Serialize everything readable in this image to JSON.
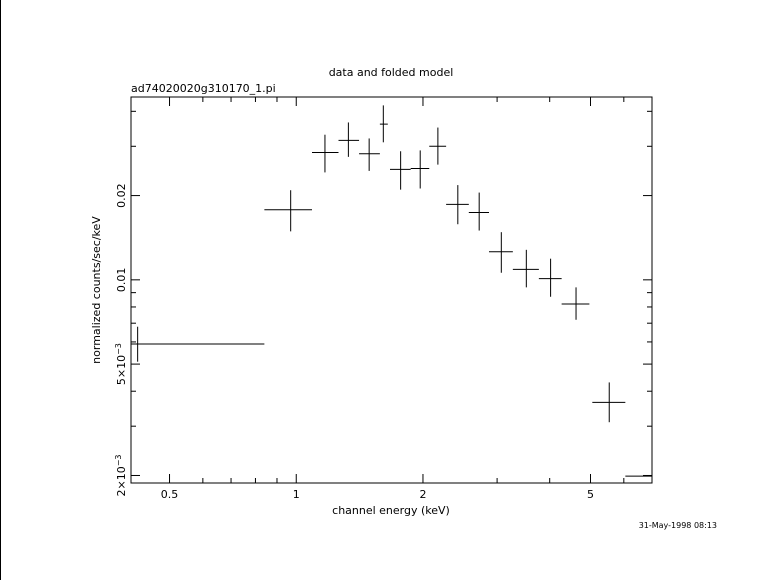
{
  "colors": {
    "background": "#ffffff",
    "ink": "#000000"
  },
  "chart_data": {
    "type": "scatter",
    "title": "data and folded model",
    "subtitle": "ad74020020g310170_1.pi",
    "xlabel": "channel energy (keV)",
    "ylabel": "normalized counts/sec/keV",
    "timestamp": "31-May-1998 08:13",
    "x_scale": "log",
    "y_scale": "log",
    "xlim": [
      0.405,
      7.0
    ],
    "ylim": [
      0.00188,
      0.045
    ],
    "grid": false,
    "x_ticks": [
      {
        "value": 0.5,
        "label": "0.5"
      },
      {
        "value": 1,
        "label": "1"
      },
      {
        "value": 2,
        "label": "2"
      },
      {
        "value": 5,
        "label": "5"
      }
    ],
    "y_ticks": [
      {
        "value": 0.002,
        "label": "2×10",
        "exponent": "−3"
      },
      {
        "value": 0.005,
        "label": "5×10",
        "exponent": "−3"
      },
      {
        "value": 0.01,
        "label": "0.01",
        "exponent": ""
      },
      {
        "value": 0.02,
        "label": "0.02",
        "exponent": ""
      }
    ],
    "series": [
      {
        "points": [
          {
            "x": 0.42,
            "xlo": 0.405,
            "xhi": 0.84,
            "y": 0.0059,
            "ylo": 0.0051,
            "yhi": 0.0068
          },
          {
            "x": 0.97,
            "xlo": 0.84,
            "xhi": 1.09,
            "y": 0.0178,
            "ylo": 0.0149,
            "yhi": 0.0209
          },
          {
            "x": 1.17,
            "xlo": 1.09,
            "xhi": 1.26,
            "y": 0.0285,
            "ylo": 0.0242,
            "yhi": 0.033
          },
          {
            "x": 1.33,
            "xlo": 1.26,
            "xhi": 1.41,
            "y": 0.0315,
            "ylo": 0.0275,
            "yhi": 0.0365
          },
          {
            "x": 1.49,
            "xlo": 1.41,
            "xhi": 1.58,
            "y": 0.0282,
            "ylo": 0.0245,
            "yhi": 0.032
          },
          {
            "x": 1.61,
            "xlo": 1.58,
            "xhi": 1.65,
            "y": 0.036,
            "ylo": 0.031,
            "yhi": 0.042
          },
          {
            "x": 1.77,
            "xlo": 1.67,
            "xhi": 1.87,
            "y": 0.0248,
            "ylo": 0.021,
            "yhi": 0.0288
          },
          {
            "x": 1.97,
            "xlo": 1.87,
            "xhi": 2.07,
            "y": 0.025,
            "ylo": 0.0212,
            "yhi": 0.029
          },
          {
            "x": 2.17,
            "xlo": 2.07,
            "xhi": 2.27,
            "y": 0.03,
            "ylo": 0.0258,
            "yhi": 0.035
          },
          {
            "x": 2.42,
            "xlo": 2.27,
            "xhi": 2.57,
            "y": 0.0186,
            "ylo": 0.0158,
            "yhi": 0.0218
          },
          {
            "x": 2.72,
            "xlo": 2.57,
            "xhi": 2.87,
            "y": 0.0174,
            "ylo": 0.015,
            "yhi": 0.0205
          },
          {
            "x": 3.07,
            "xlo": 2.87,
            "xhi": 3.27,
            "y": 0.0126,
            "ylo": 0.0106,
            "yhi": 0.0148
          },
          {
            "x": 3.52,
            "xlo": 3.27,
            "xhi": 3.77,
            "y": 0.0109,
            "ylo": 0.0094,
            "yhi": 0.0128
          },
          {
            "x": 4.02,
            "xlo": 3.77,
            "xhi": 4.27,
            "y": 0.0101,
            "ylo": 0.0087,
            "yhi": 0.0119
          },
          {
            "x": 4.62,
            "xlo": 4.27,
            "xhi": 4.97,
            "y": 0.0082,
            "ylo": 0.0072,
            "yhi": 0.0094
          },
          {
            "x": 5.54,
            "xlo": 5.05,
            "xhi": 6.05,
            "y": 0.00365,
            "ylo": 0.0031,
            "yhi": 0.0043
          },
          {
            "x": 7.0,
            "xlo": 6.05,
            "xhi": 7.0,
            "y": 0.00199,
            "ylo": 0.00188,
            "yhi": 0.00225
          }
        ]
      }
    ]
  }
}
